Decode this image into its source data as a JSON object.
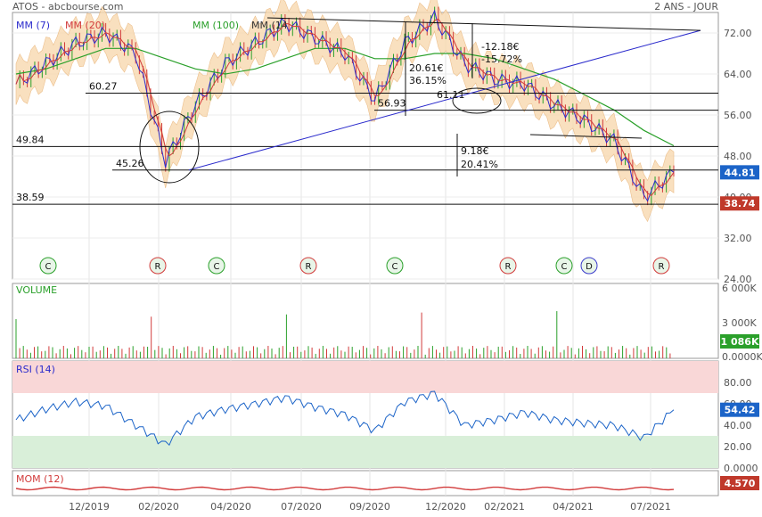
{
  "header": {
    "title": "ATOS - abcbourse.com",
    "period": "2 ANS - JOUR"
  },
  "legend": [
    {
      "label": "MM (7)",
      "color": "#2b2bcc"
    },
    {
      "label": "MM (20)",
      "color": "#d23b3b"
    },
    {
      "label": "MM (100)",
      "color": "#2aa02a"
    },
    {
      "label": "MM (14",
      "color": "#333333"
    }
  ],
  "price_axis": {
    "ticks": [
      "72.00",
      "64.00",
      "56.00",
      "48.00",
      "40.00",
      "32.00",
      "24.00"
    ]
  },
  "price_badges": {
    "last": "44.81",
    "low": "38.74"
  },
  "levels": [
    {
      "label": "60.27",
      "value": 60.27
    },
    {
      "label": "56.93",
      "value": 56.93
    },
    {
      "label": "49.84",
      "value": 49.84
    },
    {
      "label": "45.26",
      "value": 45.26
    },
    {
      "label": "38.59",
      "value": 38.59
    }
  ],
  "annotations": [
    "20.61€",
    "36.15%",
    "-12.18€",
    "-15.72%",
    "61.11",
    "9.18€",
    "20.41%"
  ],
  "signals": [
    {
      "letter": "C",
      "color": "#2aa02a"
    },
    {
      "letter": "R",
      "color": "#d23b3b"
    },
    {
      "letter": "C",
      "color": "#2aa02a"
    },
    {
      "letter": "R",
      "color": "#d23b3b"
    },
    {
      "letter": "C",
      "color": "#2aa02a"
    },
    {
      "letter": "R",
      "color": "#d23b3b"
    },
    {
      "letter": "C",
      "color": "#2aa02a"
    },
    {
      "letter": "D",
      "color": "#3b3bcc"
    },
    {
      "letter": "R",
      "color": "#d23b3b"
    }
  ],
  "volume": {
    "label": "VOLUME",
    "ticks": [
      "6 000K",
      "3 000K",
      "0.0000K"
    ],
    "badge": "1 086K"
  },
  "rsi": {
    "label": "RSI (14)",
    "ticks": [
      "80.00",
      "60.00",
      "40.00",
      "20.00",
      "0.0000"
    ],
    "badge": "54.42",
    "overbought": 70,
    "oversold": 30
  },
  "mom": {
    "label": "MOM (12)",
    "badge": "4.570"
  },
  "x_axis": [
    "12/2019",
    "02/2020",
    "04/2020",
    "07/2020",
    "09/2020",
    "12/2020",
    "02/2021",
    "04/2021",
    "07/2021"
  ],
  "chart_data": {
    "type": "line",
    "x": [
      "10/2019",
      "11/2019",
      "12/2019",
      "01/2020",
      "02/2020",
      "03/2020",
      "04/2020",
      "05/2020",
      "06/2020",
      "07/2020",
      "08/2020",
      "09/2020",
      "10/2020",
      "11/2020",
      "12/2020",
      "01/2021",
      "02/2021",
      "03/2021",
      "04/2021",
      "05/2021",
      "06/2021",
      "07/2021",
      "08/2021"
    ],
    "series": [
      {
        "name": "ATOS",
        "values": [
          62,
          66,
          70,
          72,
          68,
          47,
          58,
          66,
          70,
          74,
          71,
          68,
          59,
          70,
          75,
          66,
          63,
          62,
          58,
          55,
          51,
          40,
          44.81
        ]
      },
      {
        "name": "MM (100)",
        "values": [
          64,
          65,
          67,
          69,
          69,
          67,
          65,
          64,
          65,
          67,
          69,
          69,
          67,
          67,
          68,
          68,
          67,
          65,
          63,
          60,
          57,
          53,
          50
        ]
      }
    ],
    "rsi": [
      45,
      55,
      62,
      58,
      40,
      22,
      48,
      55,
      60,
      66,
      57,
      50,
      35,
      62,
      70,
      40,
      45,
      52,
      45,
      42,
      40,
      28,
      54.42
    ],
    "volume_last": "1 086K",
    "mom_last": 4.57,
    "ylim": [
      24,
      76
    ]
  }
}
